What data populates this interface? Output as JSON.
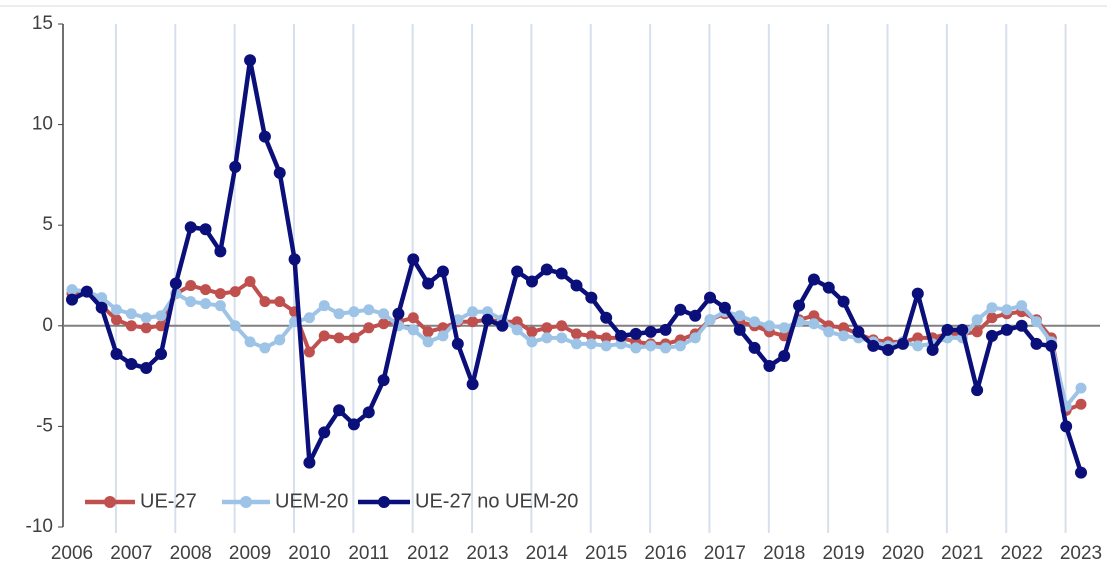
{
  "chart_data": {
    "type": "line",
    "categories": [
      "2006",
      null,
      null,
      null,
      "2007",
      null,
      null,
      null,
      "2008",
      null,
      null,
      null,
      "2009",
      null,
      null,
      null,
      "2010",
      null,
      null,
      null,
      "2011",
      null,
      null,
      null,
      "2012",
      null,
      null,
      null,
      "2013",
      null,
      null,
      null,
      "2014",
      null,
      null,
      null,
      "2015",
      null,
      null,
      null,
      "2016",
      null,
      null,
      null,
      "2017",
      null,
      null,
      null,
      "2018",
      null,
      null,
      null,
      "2019",
      null,
      null,
      null,
      "2020",
      null,
      null,
      null,
      "2021",
      null,
      null,
      null,
      "2022",
      null,
      null,
      null,
      "2023"
    ],
    "series": [
      {
        "name": "UE-27",
        "color": "#c0504d",
        "values": [
          1.6,
          1.7,
          1.0,
          0.3,
          0.0,
          -0.1,
          0.0,
          1.6,
          2.0,
          1.8,
          1.6,
          1.7,
          2.2,
          1.2,
          1.2,
          0.7,
          -1.3,
          -0.5,
          -0.6,
          -0.6,
          -0.1,
          0.1,
          0.2,
          0.4,
          -0.3,
          -0.1,
          0.2,
          0.2,
          0.3,
          0.2,
          0.2,
          -0.3,
          -0.1,
          0.0,
          -0.4,
          -0.5,
          -0.6,
          -0.6,
          -0.8,
          -0.9,
          -0.9,
          -0.7,
          -0.4,
          0.3,
          0.6,
          0.2,
          0.0,
          -0.3,
          -0.5,
          0.3,
          0.5,
          0.0,
          -0.1,
          -0.4,
          -0.7,
          -0.8,
          -0.8,
          -0.6,
          -0.6,
          -0.4,
          -0.4,
          -0.3,
          0.4,
          0.6,
          0.7,
          0.3,
          -0.6,
          -4.2,
          -3.9
        ]
      },
      {
        "name": "UEM-20",
        "color": "#9dc3e6",
        "values": [
          1.8,
          1.7,
          1.4,
          0.8,
          0.6,
          0.4,
          0.5,
          1.6,
          1.2,
          1.1,
          1.0,
          0.0,
          -0.8,
          -1.1,
          -0.7,
          0.2,
          0.4,
          1.0,
          0.6,
          0.7,
          0.8,
          0.6,
          0.0,
          -0.2,
          -0.8,
          -0.5,
          0.3,
          0.7,
          0.7,
          0.3,
          -0.2,
          -0.8,
          -0.6,
          -0.6,
          -0.9,
          -0.9,
          -1.0,
          -0.9,
          -1.1,
          -1.0,
          -1.1,
          -1.0,
          -0.6,
          0.3,
          0.7,
          0.5,
          0.2,
          0.0,
          -0.1,
          0.2,
          0.1,
          -0.3,
          -0.5,
          -0.6,
          -0.8,
          -1.0,
          -0.8,
          -1.0,
          -0.9,
          -0.6,
          -0.6,
          0.3,
          0.9,
          0.8,
          1.0,
          0.2,
          -0.8,
          -4.0,
          -3.1
        ]
      },
      {
        "name": "UE-27 no UEM-20",
        "color": "#0a0f7a",
        "values": [
          1.3,
          1.7,
          0.9,
          -1.4,
          -1.9,
          -2.1,
          -1.4,
          2.1,
          4.9,
          4.8,
          3.7,
          7.9,
          13.2,
          9.4,
          7.6,
          3.3,
          -6.8,
          -5.3,
          -4.2,
          -4.9,
          -4.3,
          -2.7,
          0.6,
          3.3,
          2.1,
          2.7,
          -0.9,
          -2.9,
          0.3,
          0.0,
          2.7,
          2.2,
          2.8,
          2.6,
          2.0,
          1.4,
          0.4,
          -0.5,
          -0.4,
          -0.3,
          -0.2,
          0.8,
          0.5,
          1.4,
          0.9,
          -0.2,
          -1.1,
          -2.0,
          -1.5,
          1.0,
          2.3,
          1.9,
          1.2,
          -0.3,
          -1.0,
          -1.2,
          -0.9,
          1.6,
          -1.2,
          -0.2,
          -0.2,
          -3.2,
          -0.5,
          -0.2,
          0.0,
          -0.9,
          -1.0,
          -5.0,
          -7.3
        ]
      }
    ],
    "ylim": [
      -10,
      15
    ],
    "yticks": [
      -10,
      -5,
      0,
      5,
      10,
      15
    ],
    "legend": "lower left"
  }
}
